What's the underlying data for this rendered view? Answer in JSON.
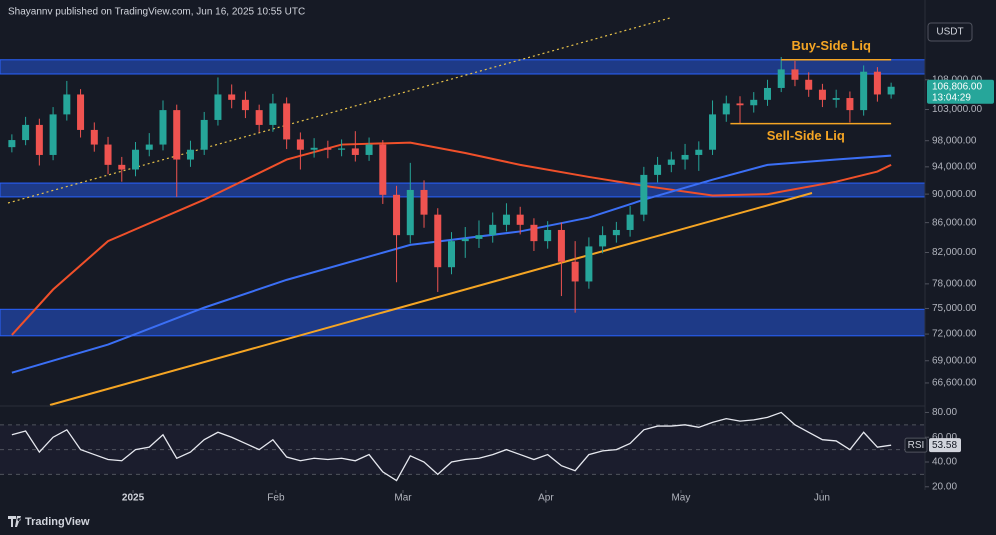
{
  "header": "Shayannv published on TradingView.com, Jun 16, 2025 10:55 UTC",
  "brand": "TradingView",
  "chart_data": [
    {
      "type": "candlestick",
      "currency": "USDT",
      "yscale": "log",
      "ylim": [
        64300,
        118800
      ],
      "yticks": [
        {
          "value": 108000,
          "label": "108,000.00"
        },
        {
          "value": 103000,
          "label": "103,000.00"
        },
        {
          "value": 98000,
          "label": "98,000.00"
        },
        {
          "value": 94000,
          "label": "94,000.00"
        },
        {
          "value": 90000,
          "label": "90,000.00"
        },
        {
          "value": 86000,
          "label": "86,000.00"
        },
        {
          "value": 82000,
          "label": "82,000.00"
        },
        {
          "value": 78000,
          "label": "78,000.00"
        },
        {
          "value": 75000,
          "label": "75,000.00"
        },
        {
          "value": 72000,
          "label": "72,000.00"
        },
        {
          "value": 69000,
          "label": "69,000.00"
        },
        {
          "value": 66600,
          "label": "66,600.00"
        }
      ],
      "xlim": [
        -0.5,
        64.5
      ],
      "xticks": [
        {
          "value": 8.82,
          "label": "2025"
        },
        {
          "value": 19.22,
          "label": "Feb"
        },
        {
          "value": 28.47,
          "label": "Mar"
        },
        {
          "value": 38.87,
          "label": "Apr"
        },
        {
          "value": 48.7,
          "label": "May"
        },
        {
          "value": 58.96,
          "label": "Jun"
        }
      ],
      "up_color": "#26a69a",
      "down_color": "#ef5350",
      "ohlc": [
        [
          97000,
          99000,
          96200,
          98100
        ],
        [
          98100,
          101800,
          97300,
          100500
        ],
        [
          100500,
          101500,
          94200,
          95800
        ],
        [
          95800,
          103400,
          95000,
          102200
        ],
        [
          102200,
          107800,
          101200,
          105500
        ],
        [
          105500,
          106400,
          98500,
          99700
        ],
        [
          99700,
          100900,
          96300,
          97400
        ],
        [
          97400,
          98600,
          92900,
          94300
        ],
        [
          94300,
          95500,
          91800,
          93600
        ],
        [
          93600,
          97800,
          92600,
          96600
        ],
        [
          96600,
          99200,
          95600,
          97400
        ],
        [
          97400,
          104500,
          96500,
          102900
        ],
        [
          102900,
          103800,
          89600,
          95100
        ],
        [
          95100,
          98000,
          94000,
          96600
        ],
        [
          96600,
          102600,
          95800,
          101300
        ],
        [
          101300,
          108400,
          100400,
          105500
        ],
        [
          105500,
          107200,
          103200,
          104600
        ],
        [
          104600,
          106000,
          101600,
          102900
        ],
        [
          102900,
          103800,
          99300,
          100500
        ],
        [
          100500,
          105600,
          99400,
          104000
        ],
        [
          104000,
          105000,
          96700,
          98200
        ],
        [
          98200,
          99300,
          93600,
          96600
        ],
        [
          96600,
          98400,
          95400,
          96900
        ],
        [
          96900,
          98000,
          95300,
          96600
        ],
        [
          96600,
          98200,
          95600,
          96800
        ],
        [
          96800,
          99500,
          94800,
          95800
        ],
        [
          95800,
          98500,
          94900,
          97400
        ],
        [
          97400,
          98100,
          88600,
          89900
        ],
        [
          89900,
          91200,
          78200,
          84300
        ],
        [
          84300,
          94600,
          83200,
          90600
        ],
        [
          90600,
          92000,
          85300,
          87100
        ],
        [
          87100,
          88000,
          77000,
          80100
        ],
        [
          80100,
          84700,
          79200,
          83500
        ],
        [
          83500,
          85400,
          81300,
          83800
        ],
        [
          83800,
          86300,
          82600,
          84300
        ],
        [
          84300,
          87400,
          83300,
          85700
        ],
        [
          85700,
          88700,
          84800,
          87100
        ],
        [
          87100,
          88200,
          84400,
          85700
        ],
        [
          85700,
          86600,
          82200,
          83500
        ],
        [
          83500,
          86200,
          82500,
          85000
        ],
        [
          85000,
          86000,
          76500,
          80800
        ],
        [
          80800,
          83500,
          74500,
          78300
        ],
        [
          78300,
          84000,
          77400,
          82800
        ],
        [
          82800,
          85500,
          81900,
          84300
        ],
        [
          84300,
          86100,
          83300,
          85000
        ],
        [
          85000,
          88300,
          84100,
          87100
        ],
        [
          87100,
          94000,
          86200,
          92800
        ],
        [
          92800,
          95500,
          91700,
          94300
        ],
        [
          94300,
          96300,
          93200,
          95100
        ],
        [
          95100,
          97500,
          93600,
          95800
        ],
        [
          95800,
          97900,
          93400,
          96600
        ],
        [
          96600,
          104500,
          95800,
          102200
        ],
        [
          102200,
          105300,
          101000,
          104000
        ],
        [
          104000,
          105200,
          100800,
          103700
        ],
        [
          103700,
          105900,
          102500,
          104600
        ],
        [
          104600,
          108000,
          103600,
          106600
        ],
        [
          106600,
          112000,
          105900,
          109800
        ],
        [
          109800,
          111300,
          106900,
          108000
        ],
        [
          108000,
          109300,
          105100,
          106300
        ],
        [
          106300,
          107300,
          103400,
          104600
        ],
        [
          104600,
          106300,
          103300,
          104900
        ],
        [
          104900,
          106000,
          100900,
          102900
        ],
        [
          102900,
          110500,
          102000,
          109400
        ],
        [
          109400,
          110200,
          104300,
          105500
        ],
        [
          105500,
          107500,
          104800,
          106806
        ]
      ],
      "lines": [
        {
          "color": "#f0502a",
          "x": [
            0,
            3,
            7,
            14,
            20,
            24,
            29,
            33,
            37,
            42,
            46,
            51,
            55,
            60,
            63,
            64
          ],
          "values": [
            71900,
            77300,
            83500,
            89200,
            95100,
            97400,
            97700,
            96100,
            94300,
            92500,
            91200,
            89800,
            90000,
            91800,
            93300,
            94300
          ]
        },
        {
          "color": "#3b6ff5",
          "x": [
            0,
            7,
            14,
            20,
            29,
            37,
            42,
            46,
            51,
            55,
            60,
            64
          ],
          "values": [
            67700,
            70800,
            75100,
            78500,
            83000,
            84800,
            86700,
            89200,
            92100,
            94300,
            95100,
            95700
          ]
        }
      ],
      "zones": [
        {
          "low": 109000,
          "high": 111500
        },
        {
          "low": 89600,
          "high": 91600
        },
        {
          "low": 71800,
          "high": 74900
        }
      ],
      "levels": [
        {
          "label": "Buy-Side Liq",
          "value": 111500,
          "x": [
            56,
            64
          ]
        },
        {
          "label": "Sell-Side Liq",
          "value": 100700,
          "x": [
            52.3,
            64
          ]
        }
      ],
      "last_price": {
        "value": 106806,
        "label": "106,806.00"
      },
      "countdown": "13:04:29"
    },
    {
      "type": "line",
      "name": "RSI",
      "color": "#e6e8ef",
      "xlim": [
        -0.5,
        64.5
      ],
      "ylim": [
        17.4,
        84.4
      ],
      "yticks": [
        {
          "value": 80,
          "label": "80.00"
        },
        {
          "value": 60,
          "label": "60.00"
        },
        {
          "value": 40,
          "label": "40.00"
        },
        {
          "value": 20,
          "label": "20.00"
        }
      ],
      "levels": [
        70,
        50,
        30
      ],
      "values": [
        62,
        65,
        48,
        60,
        66,
        50,
        46,
        42,
        41,
        50,
        52,
        62,
        43,
        48,
        58,
        64,
        60,
        55,
        50,
        58,
        44,
        41,
        43,
        42,
        43,
        41,
        46,
        32,
        25,
        45,
        40,
        30,
        40,
        42,
        43,
        46,
        50,
        46,
        42,
        46,
        37,
        33,
        46,
        49,
        50,
        55,
        66,
        69,
        69,
        70,
        68,
        72,
        75,
        73,
        74,
        76,
        80,
        70,
        64,
        58,
        57,
        50,
        64,
        52,
        53.58
      ]
    }
  ]
}
